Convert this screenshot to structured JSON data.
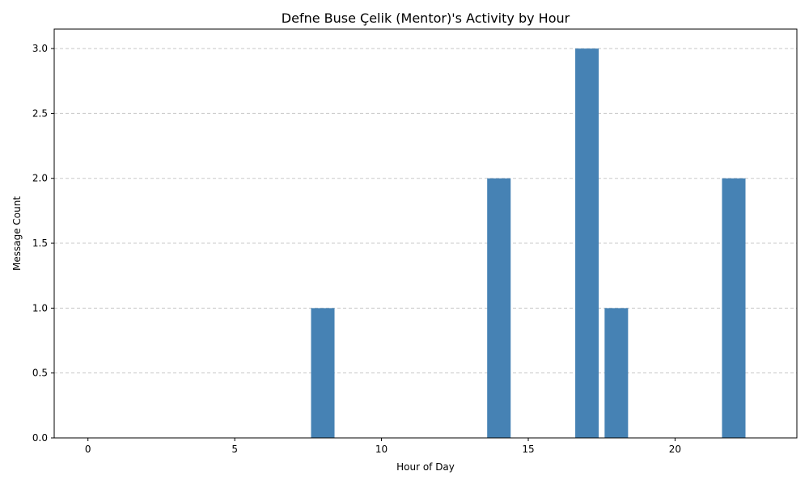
{
  "chart_data": {
    "type": "bar",
    "title": "Defne Buse Çelik (Mentor)'s Activity by Hour",
    "xlabel": "Hour of Day",
    "ylabel": "Message Count",
    "x": [
      8,
      14,
      17,
      18,
      22
    ],
    "values": [
      1,
      2,
      3,
      1,
      2
    ],
    "xlim": [
      -1.15,
      24.15
    ],
    "ylim": [
      0,
      3.15
    ],
    "xticks": [
      0,
      5,
      10,
      15,
      20
    ],
    "yticks": [
      0.0,
      0.5,
      1.0,
      1.5,
      2.0,
      2.5,
      3.0
    ],
    "ytick_labels": [
      "0.0",
      "0.5",
      "1.0",
      "1.5",
      "2.0",
      "2.5",
      "3.0"
    ],
    "bar_width_hours": 0.8,
    "grid": {
      "axis": "y",
      "style": "dashed"
    },
    "legend": "none",
    "colors": {
      "bar": "#4682b4",
      "grid": "#c8c8c8",
      "axis": "#000000"
    }
  }
}
